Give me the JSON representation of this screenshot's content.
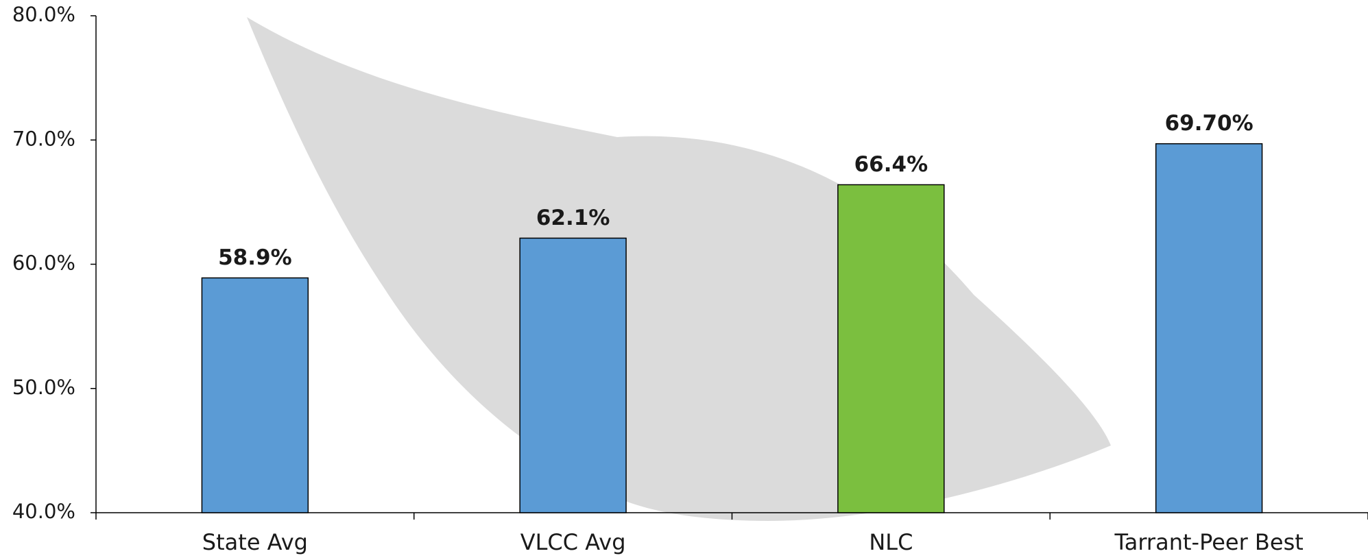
{
  "chart_data": {
    "type": "bar",
    "categories": [
      "State Avg",
      "VLCC Avg",
      "NLC",
      "Tarrant-Peer Best"
    ],
    "values": [
      58.9,
      62.1,
      66.4,
      69.7
    ],
    "value_labels": [
      "58.9%",
      "62.1%",
      "66.4%",
      "69.70%"
    ],
    "colors": [
      "#5b9bd5",
      "#5b9bd5",
      "#7bbf3f",
      "#5b9bd5"
    ],
    "ylim": [
      40,
      80
    ],
    "yticks": [
      {
        "value": 40,
        "label": "40.0%"
      },
      {
        "value": 50,
        "label": "50.0%"
      },
      {
        "value": 60,
        "label": "60.0%"
      },
      {
        "value": 70,
        "label": "70.0%"
      },
      {
        "value": 80,
        "label": "80.0%"
      }
    ],
    "grid": false
  }
}
